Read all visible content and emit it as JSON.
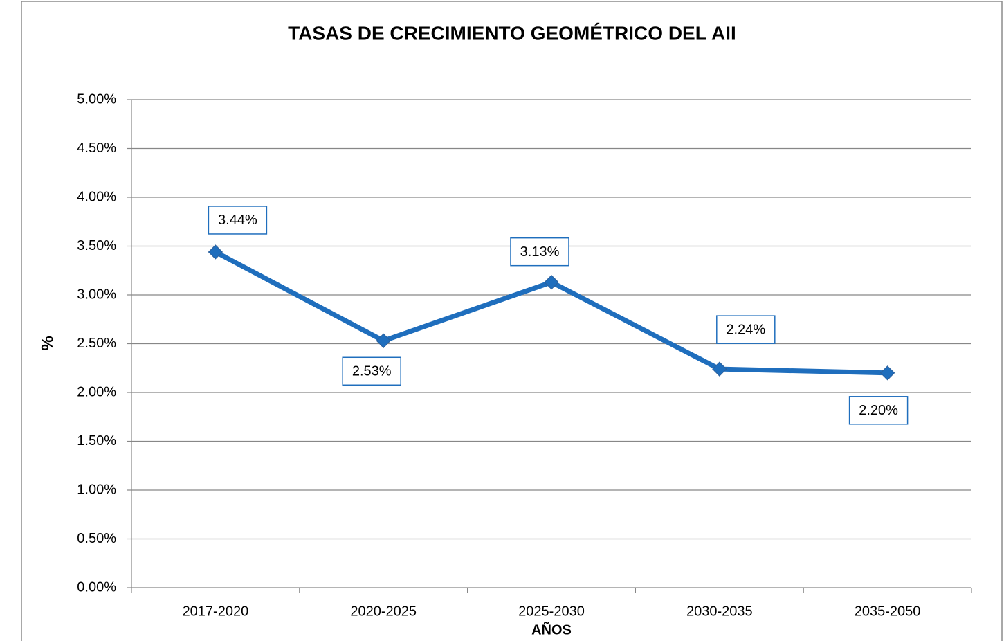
{
  "chart_data": {
    "type": "line",
    "title": "TASAS DE CRECIMIENTO GEOMÉTRICO DEL AII",
    "x_label": "AÑOS",
    "y_label": "%",
    "categories": [
      "2017-2020",
      "2020-2025",
      "2025-2030",
      "2030-2035",
      "2035-2050"
    ],
    "series": [
      {
        "name": "Tasa",
        "color": "#1f6ebd",
        "values": [
          3.44,
          2.53,
          3.13,
          2.24,
          2.2
        ],
        "value_labels": [
          "3.44%",
          "2.53%",
          "3.13%",
          "2.24%",
          "2.20%"
        ]
      }
    ],
    "ylim": [
      0,
      5
    ],
    "yticks": [
      {
        "value": 0,
        "label": "0.00%"
      },
      {
        "value": 0.5,
        "label": "0.50%"
      },
      {
        "value": 1,
        "label": "1.00%"
      },
      {
        "value": 1.5,
        "label": "1.50%"
      },
      {
        "value": 2,
        "label": "2.00%"
      },
      {
        "value": 2.5,
        "label": "2.50%"
      },
      {
        "value": 3,
        "label": "3.00%"
      },
      {
        "value": 3.5,
        "label": "3.50%"
      },
      {
        "value": 4,
        "label": "4.00%"
      },
      {
        "value": 4.5,
        "label": "4.50%"
      },
      {
        "value": 5,
        "label": "5.00%"
      }
    ],
    "grid": true
  }
}
